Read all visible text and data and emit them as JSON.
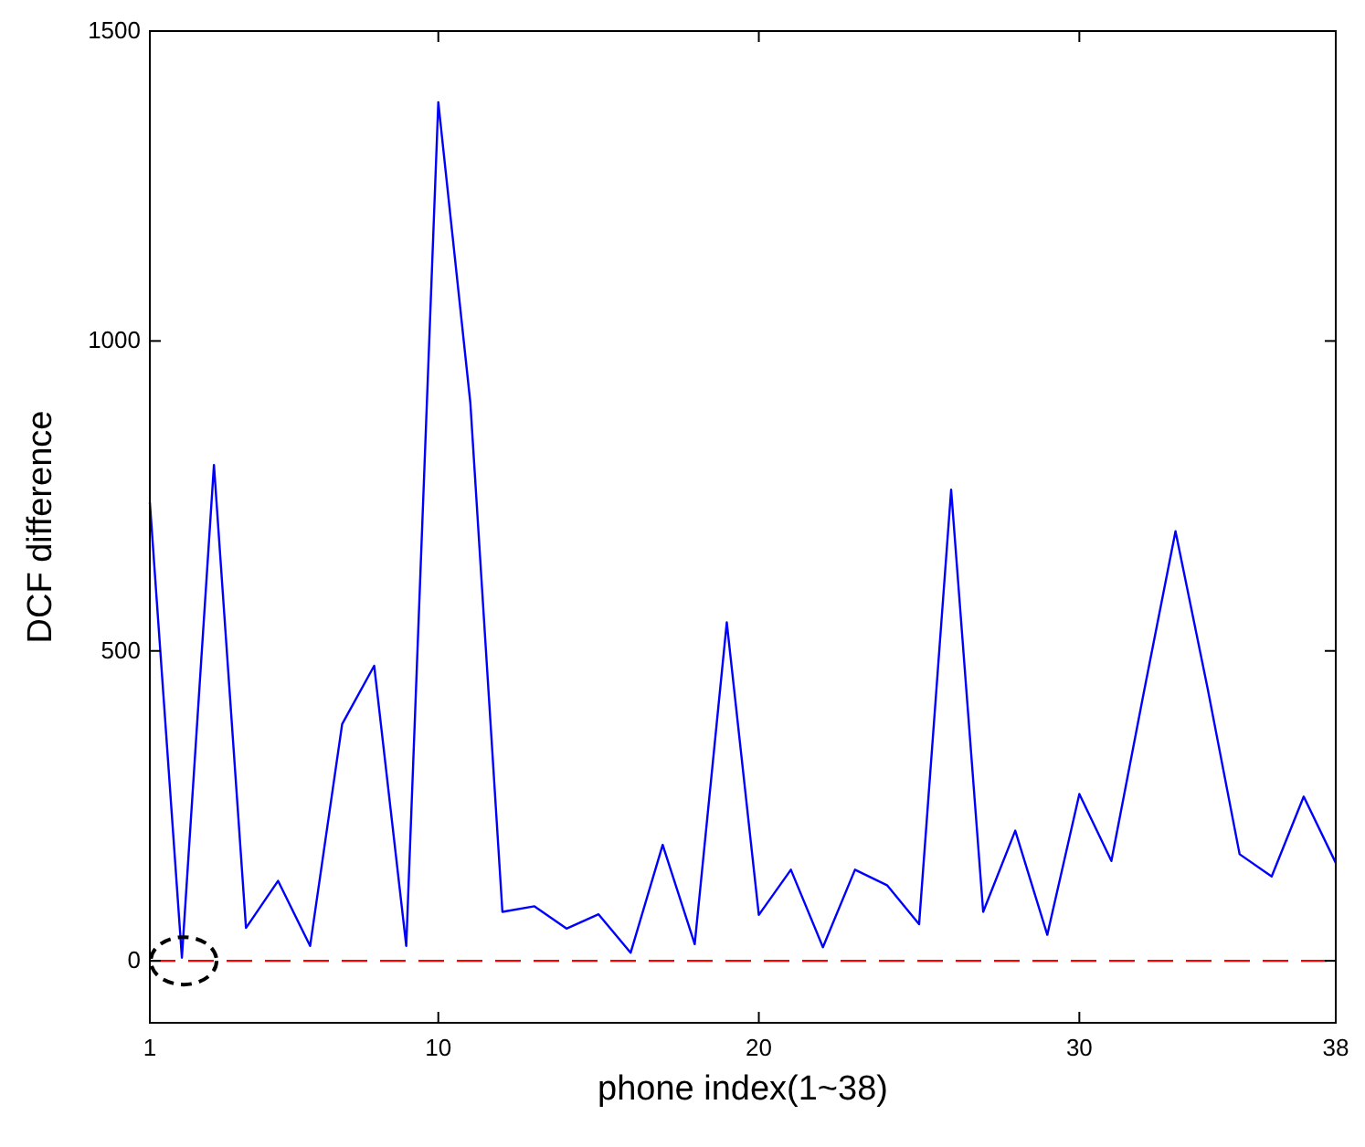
{
  "chart_data": {
    "type": "line",
    "xlabel": "phone index(1~38)",
    "ylabel": "DCF difference",
    "x": [
      1,
      2,
      3,
      4,
      5,
      6,
      7,
      8,
      9,
      10,
      11,
      12,
      13,
      14,
      15,
      16,
      17,
      18,
      19,
      20,
      21,
      22,
      23,
      24,
      25,
      26,
      27,
      28,
      29,
      30,
      31,
      32,
      33,
      34,
      35,
      36,
      37,
      38
    ],
    "series": [
      {
        "color": "#0000ff",
        "values": [
          740,
          5,
          800,
          53,
          129,
          24,
          382,
          476,
          24,
          1385,
          900,
          79,
          88,
          52,
          75,
          13,
          187,
          27,
          546,
          74,
          147,
          22,
          147,
          122,
          59,
          760,
          79,
          210,
          42,
          269,
          161,
          430,
          693,
          440,
          172,
          136,
          265,
          158
        ]
      }
    ],
    "xlim": [
      1,
      38
    ],
    "xticks": [
      1,
      10,
      20,
      30,
      38
    ],
    "ylim": [
      -100,
      1500
    ],
    "yticks": [
      0,
      500,
      1000,
      1500
    ],
    "ref_lines": [
      {
        "axis": "y",
        "value": 0,
        "color": "#ff0000",
        "line_style": "dashed"
      }
    ],
    "grid": false,
    "line_style": "solid",
    "marker": "none"
  }
}
